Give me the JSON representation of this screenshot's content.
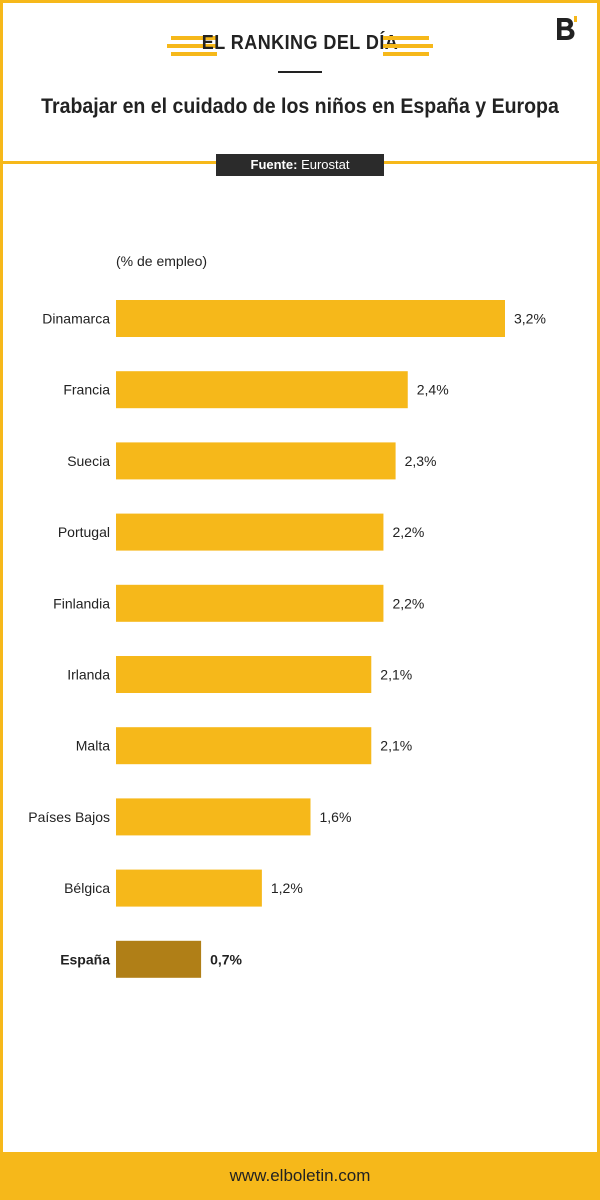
{
  "header": {
    "ranking_label": "EL RANKING DEL DÍA",
    "title": "Trabajar en el cuidado de los niños en España y Europa",
    "source_prefix": "Fuente:",
    "source_name": "Eurostat",
    "logo_icon": "elboletin-b-logo-icon"
  },
  "colors": {
    "accent": "#f6b81a",
    "highlight": "#b07f17",
    "dark": "#2b2b2b"
  },
  "chart_data": {
    "type": "bar",
    "orientation": "horizontal",
    "unit_label": "(% de empleo)",
    "categories": [
      "Dinamarca",
      "Francia",
      "Suecia",
      "Portugal",
      "Finlandia",
      "Irlanda",
      "Malta",
      "Países Bajos",
      "Bélgica",
      "España"
    ],
    "values": [
      3.2,
      2.4,
      2.3,
      2.2,
      2.2,
      2.1,
      2.1,
      1.6,
      1.2,
      0.7
    ],
    "value_labels": [
      "3,2%",
      "2,4%",
      "2,3%",
      "2,2%",
      "2,2%",
      "2,1%",
      "2,1%",
      "1,6%",
      "1,2%",
      "0,7%"
    ],
    "highlighted": "España",
    "title": "",
    "xlabel": "",
    "ylabel": ""
  },
  "footer": {
    "url": "www.elboletin.com"
  }
}
